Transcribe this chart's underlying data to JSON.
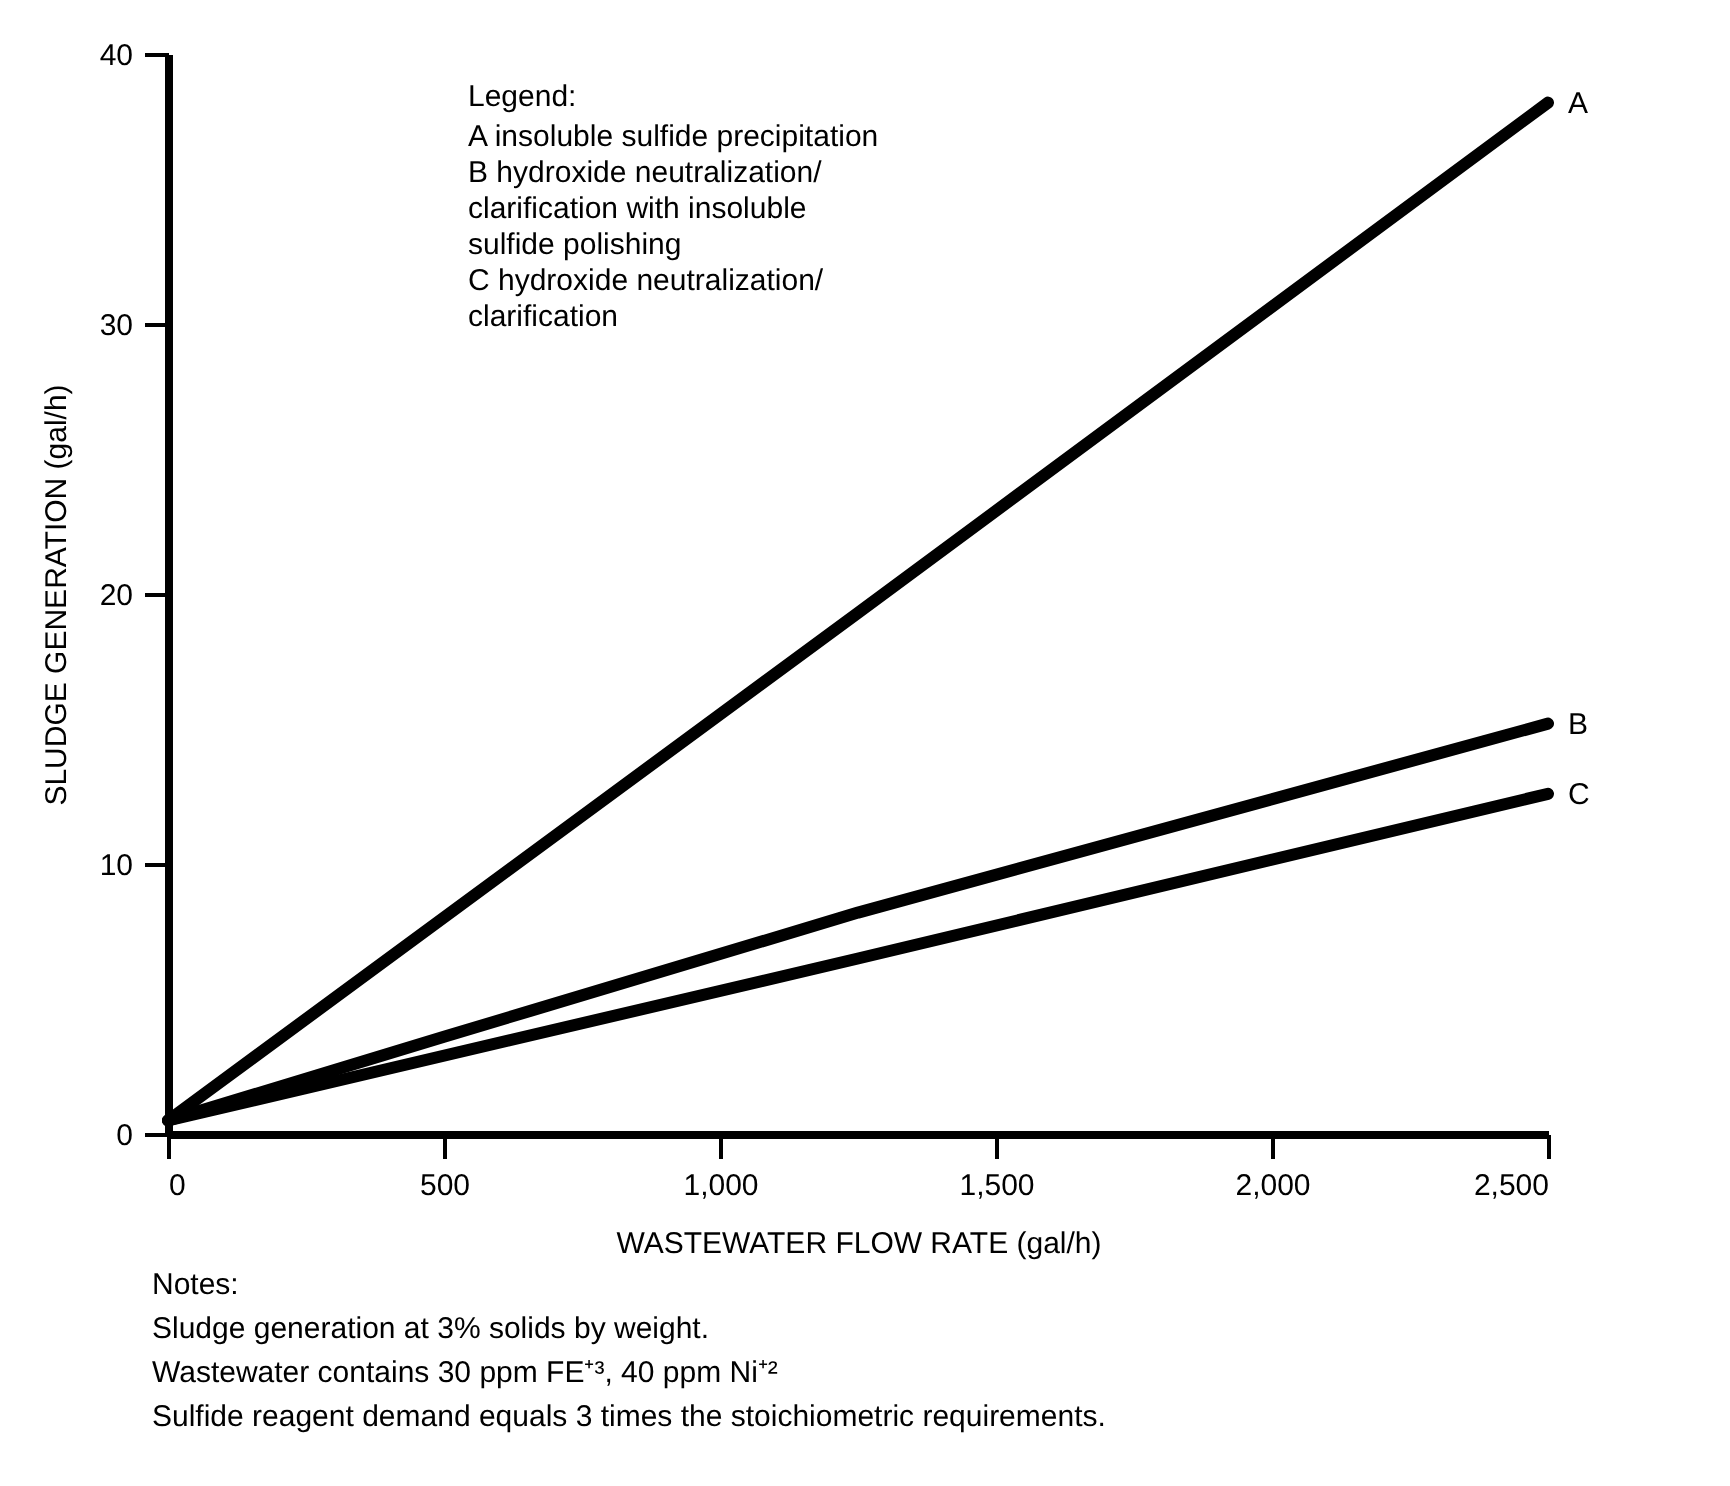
{
  "chart_data": {
    "type": "line",
    "xlabel": "WASTEWATER FLOW RATE (gal/h)",
    "ylabel": "SLUDGE GENERATION (gal/h)",
    "legend_title": "Legend:",
    "series": [
      {
        "name": "A",
        "color": "#000000",
        "x": [
          0,
          1250,
          2500
        ],
        "values": [
          0.5,
          19.3,
          38.2
        ]
      },
      {
        "name": "B",
        "color": "#000000",
        "x": [
          0,
          500,
          1250,
          2500
        ],
        "values": [
          0.5,
          3.6,
          8.2,
          15.2
        ]
      },
      {
        "name": "C",
        "color": "#000000",
        "x": [
          0,
          1250,
          2500
        ],
        "values": [
          0.5,
          6.5,
          12.6
        ]
      }
    ],
    "xlim": [
      0,
      2500
    ],
    "xticks": [
      0,
      500,
      {
        "value": 1000,
        "label": "1,000"
      },
      {
        "value": 1500,
        "label": "1,500"
      },
      {
        "value": 2000,
        "label": "2,000"
      },
      {
        "value": 2500,
        "label": "2,500"
      }
    ],
    "ylim": [
      0,
      40
    ],
    "yticks": [
      0,
      10,
      20,
      30,
      40
    ],
    "grid": false,
    "marker": "none",
    "line_style": "solid",
    "annotations": [
      "A  insoluble sulfide precipitation",
      "B  hydroxide neutralization/\n     clarification with insoluble\n     sulfide polishing",
      "C  hydroxide neutralization/\n     clarification",
      "Notes:",
      "Sludge generation at 3% solids by weight.",
      "Wastewater contains 30 ppm FE⁺³, 40 ppm Ni⁺²",
      "Sulfide reagent demand equals 3 times the stoichiometric requirements."
    ]
  }
}
